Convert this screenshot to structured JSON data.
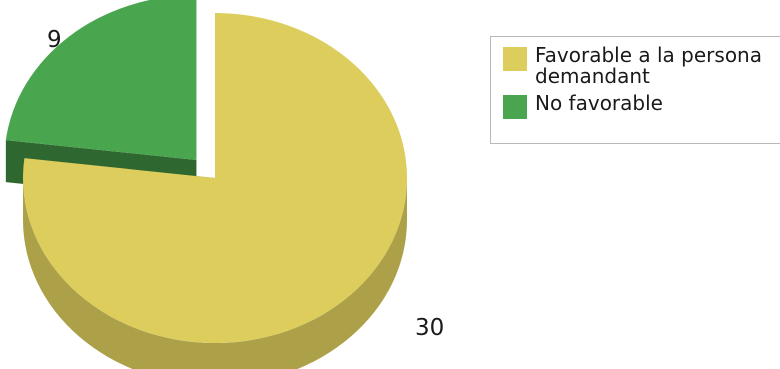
{
  "chart_data": {
    "type": "pie",
    "title": "",
    "slices": [
      {
        "label": "Favorable a la persona demandant",
        "value": 30,
        "color": "#dccd5c"
      },
      {
        "label": "No favorable",
        "value": 9,
        "color": "#4aa64e"
      }
    ],
    "data_labels": [
      "30",
      "9"
    ],
    "legend_position": "right"
  },
  "legend": {
    "items": [
      {
        "label": "Favorable a la persona demandant",
        "color": "#dccd5c"
      },
      {
        "label": "No favorable",
        "color": "#4aa64e"
      }
    ]
  }
}
